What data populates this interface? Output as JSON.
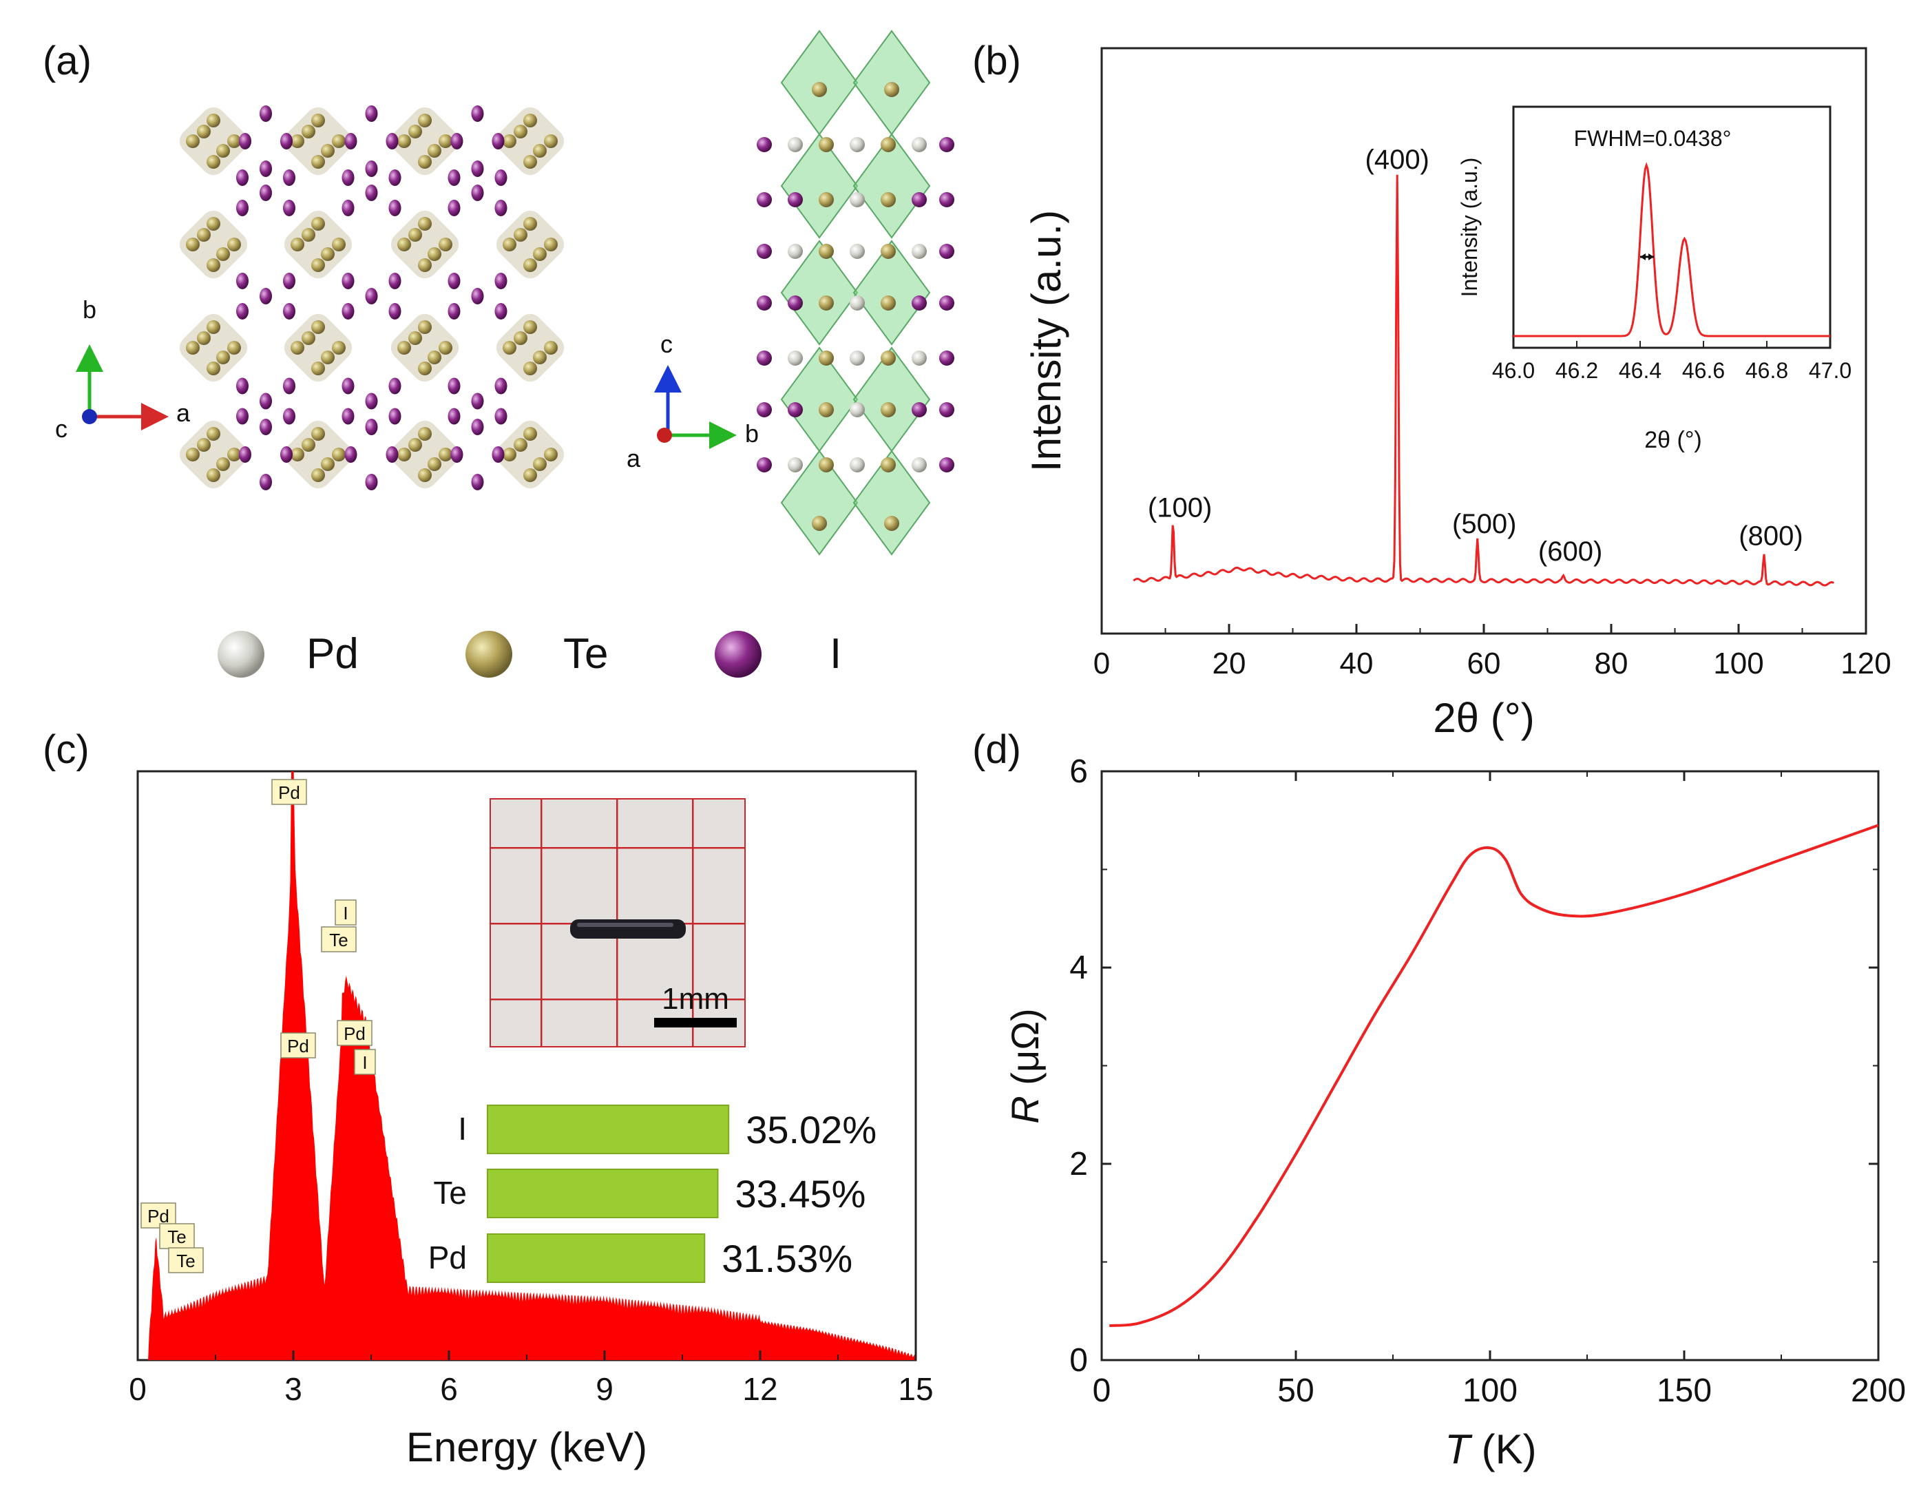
{
  "panels": {
    "a": {
      "label": "(a)",
      "axes_left": {
        "x": "a",
        "y": "b",
        "z": "c"
      },
      "axes_right": {
        "x": "b",
        "y": "c",
        "z": "a"
      },
      "legend": [
        {
          "symbol": "Pd",
          "color": "#d0d0c8"
        },
        {
          "symbol": "Te",
          "color": "#b3a257"
        },
        {
          "symbol": "I",
          "color": "#8b2a8a"
        }
      ]
    },
    "b": {
      "label": "(b)"
    },
    "c": {
      "label": "(c)",
      "scale_bar": "1mm"
    },
    "d": {
      "label": "(d)"
    }
  },
  "chart_data": [
    {
      "panel": "b",
      "type": "line",
      "xlabel": "2θ (°)",
      "ylabel": "Intensity (a.u.)",
      "xlim": [
        0,
        120
      ],
      "xticks": [
        0,
        20,
        40,
        60,
        80,
        100,
        120
      ],
      "color": "#ee2222",
      "background": [
        [
          5,
          0.02
        ],
        [
          10,
          0.025
        ],
        [
          18,
          0.04
        ],
        [
          22,
          0.05
        ],
        [
          28,
          0.035
        ],
        [
          40,
          0.022
        ],
        [
          60,
          0.02
        ],
        [
          90,
          0.018
        ],
        [
          115,
          0.012
        ]
      ],
      "peaks": [
        {
          "label": "(100)",
          "x": 11.2,
          "height": 0.14
        },
        {
          "label": "(400)",
          "x": 46.4,
          "height": 1.0
        },
        {
          "label": "(500)",
          "x": 59.0,
          "height": 0.1
        },
        {
          "label": "(600)",
          "x": 72.5,
          "height": 0.01
        },
        {
          "label": "(800)",
          "x": 104.0,
          "height": 0.07
        }
      ],
      "inset": {
        "title": "FWHM=0.0438°",
        "xlabel": "2θ (°)",
        "ylabel": "Intensity (a.u.)",
        "xlim": [
          46.0,
          47.0
        ],
        "xticks": [
          "46.0",
          "46.2",
          "46.4",
          "46.6",
          "46.8",
          "47.0"
        ],
        "peaks": [
          {
            "x": 46.42,
            "height": 1.0
          },
          {
            "x": 46.54,
            "height": 0.57
          }
        ]
      }
    },
    {
      "panel": "c",
      "type": "area",
      "xlabel": "Energy (keV)",
      "xlim": [
        0,
        15
      ],
      "xticks": [
        0,
        3,
        6,
        9,
        12,
        15
      ],
      "color": "#ff0000",
      "spectrum": [
        [
          0.2,
          0.0
        ],
        [
          0.35,
          0.22
        ],
        [
          0.5,
          0.07
        ],
        [
          0.8,
          0.08
        ],
        [
          1.5,
          0.11
        ],
        [
          2.5,
          0.14
        ],
        [
          3.0,
          0.95
        ],
        [
          3.6,
          0.12
        ],
        [
          4.0,
          0.7
        ],
        [
          4.4,
          0.62
        ],
        [
          5.2,
          0.12
        ],
        [
          7,
          0.11
        ],
        [
          9,
          0.1
        ],
        [
          11,
          0.08
        ],
        [
          13,
          0.05
        ],
        [
          14.5,
          0.015
        ],
        [
          15,
          0.0
        ]
      ],
      "peak_labels": [
        "Pd",
        "Pd",
        "I",
        "Te",
        "Pd",
        "I",
        "Pd",
        "Te",
        "Te"
      ],
      "composition": [
        {
          "element": "I",
          "percent": 35.02,
          "label": "35.02%"
        },
        {
          "element": "Te",
          "percent": 33.45,
          "label": "33.45%"
        },
        {
          "element": "Pd",
          "percent": 31.53,
          "label": "31.53%"
        }
      ]
    },
    {
      "panel": "d",
      "type": "line",
      "xlabel_symbol": "T",
      "xlabel_unit": " (K)",
      "ylabel_symbol": "R",
      "ylabel_unit": " (μΩ)",
      "xlim": [
        0,
        200
      ],
      "ylim": [
        0,
        6
      ],
      "xticks": [
        0,
        50,
        100,
        150,
        200
      ],
      "yticks": [
        0,
        2,
        4,
        6
      ],
      "color": "#ee2222",
      "points": [
        [
          2,
          0.35
        ],
        [
          10,
          0.38
        ],
        [
          20,
          0.55
        ],
        [
          30,
          0.9
        ],
        [
          40,
          1.45
        ],
        [
          50,
          2.1
        ],
        [
          60,
          2.8
        ],
        [
          70,
          3.5
        ],
        [
          80,
          4.15
        ],
        [
          90,
          4.85
        ],
        [
          95,
          5.15
        ],
        [
          100,
          5.22
        ],
        [
          104,
          5.1
        ],
        [
          108,
          4.75
        ],
        [
          113,
          4.6
        ],
        [
          120,
          4.53
        ],
        [
          130,
          4.55
        ],
        [
          150,
          4.75
        ],
        [
          175,
          5.1
        ],
        [
          200,
          5.45
        ]
      ]
    }
  ]
}
